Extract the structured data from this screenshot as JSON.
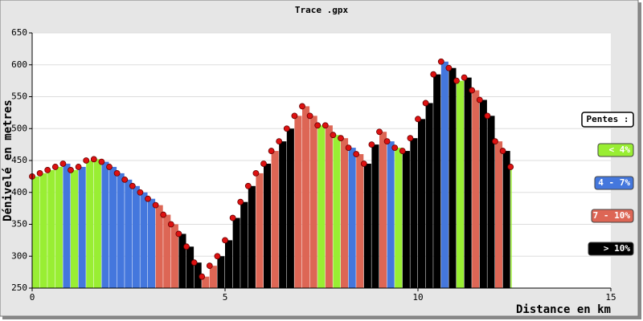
{
  "chart_data": {
    "type": "profile",
    "title": "Trace .gpx",
    "x_label": "Distance en km",
    "y_label": "Dénivelé en metres",
    "xlim": [
      0,
      15
    ],
    "xticks": [
      0,
      5,
      10,
      15
    ],
    "ylim": [
      250,
      650
    ],
    "yticks": [
      250,
      300,
      350,
      400,
      450,
      500,
      550,
      600,
      650
    ],
    "grid": true,
    "point_color": "#dd1111",
    "x": [
      0,
      0.2,
      0.4,
      0.6,
      0.8,
      1.0,
      1.2,
      1.4,
      1.6,
      1.8,
      2.0,
      2.2,
      2.4,
      2.6,
      2.8,
      3.0,
      3.2,
      3.4,
      3.6,
      3.8,
      4.0,
      4.2,
      4.4,
      4.6,
      4.8,
      5.0,
      5.2,
      5.4,
      5.6,
      5.8,
      6.0,
      6.2,
      6.4,
      6.6,
      6.8,
      7.0,
      7.2,
      7.4,
      7.6,
      7.8,
      8.0,
      8.2,
      8.4,
      8.6,
      8.8,
      9.0,
      9.2,
      9.4,
      9.6,
      9.8,
      10.0,
      10.2,
      10.4,
      10.6,
      10.8,
      11.0,
      11.2,
      11.4,
      11.6,
      11.8,
      12.0,
      12.2,
      12.4
    ],
    "values": [
      425,
      430,
      435,
      440,
      445,
      435,
      440,
      450,
      452,
      448,
      440,
      430,
      420,
      410,
      400,
      390,
      380,
      365,
      350,
      335,
      315,
      290,
      268,
      285,
      300,
      325,
      360,
      385,
      410,
      430,
      445,
      465,
      480,
      500,
      520,
      535,
      520,
      505,
      505,
      490,
      485,
      470,
      460,
      445,
      475,
      495,
      480,
      470,
      465,
      485,
      515,
      540,
      585,
      605,
      595,
      575,
      580,
      560,
      545,
      520,
      480,
      465,
      440
    ],
    "bar_colors": [
      "#99ee33",
      "#99ee33",
      "#99ee33",
      "#99ee33",
      "#4477dd",
      "#99ee33",
      "#4477dd",
      "#99ee33",
      "#99ee33",
      "#4477dd",
      "#4477dd",
      "#4477dd",
      "#4477dd",
      "#4477dd",
      "#4477dd",
      "#4477dd",
      "#dd6655",
      "#dd6655",
      "#dd6655",
      "#000000",
      "#000000",
      "#000000",
      "#dd6655",
      "#dd6655",
      "#000000",
      "#000000",
      "#000000",
      "#000000",
      "#000000",
      "#dd6655",
      "#000000",
      "#dd6655",
      "#000000",
      "#000000",
      "#dd6655",
      "#dd6655",
      "#dd6655",
      "#99ee33",
      "#dd6655",
      "#99ee33",
      "#dd6655",
      "#4477dd",
      "#dd6655",
      "#000000",
      "#000000",
      "#dd6655",
      "#4477dd",
      "#99ee33",
      "#000000",
      "#000000",
      "#000000",
      "#000000",
      "#000000",
      "#4477dd",
      "#000000",
      "#99ee33",
      "#000000",
      "#dd6655",
      "#000000",
      "#000000",
      "#dd6655",
      "#000000",
      "#99ee33"
    ],
    "legend_title": "Pentes :",
    "legend": [
      {
        "label": "< 4%",
        "color": "#99ee33",
        "text_color": "#ffffff"
      },
      {
        "label": "4 - 7%",
        "color": "#4477dd",
        "text_color": "#ffffff"
      },
      {
        "label": "7 - 10%",
        "color": "#dd6655",
        "text_color": "#ffffff"
      },
      {
        "label": "> 10%",
        "color": "#000000",
        "text_color": "#ffffff"
      }
    ]
  }
}
